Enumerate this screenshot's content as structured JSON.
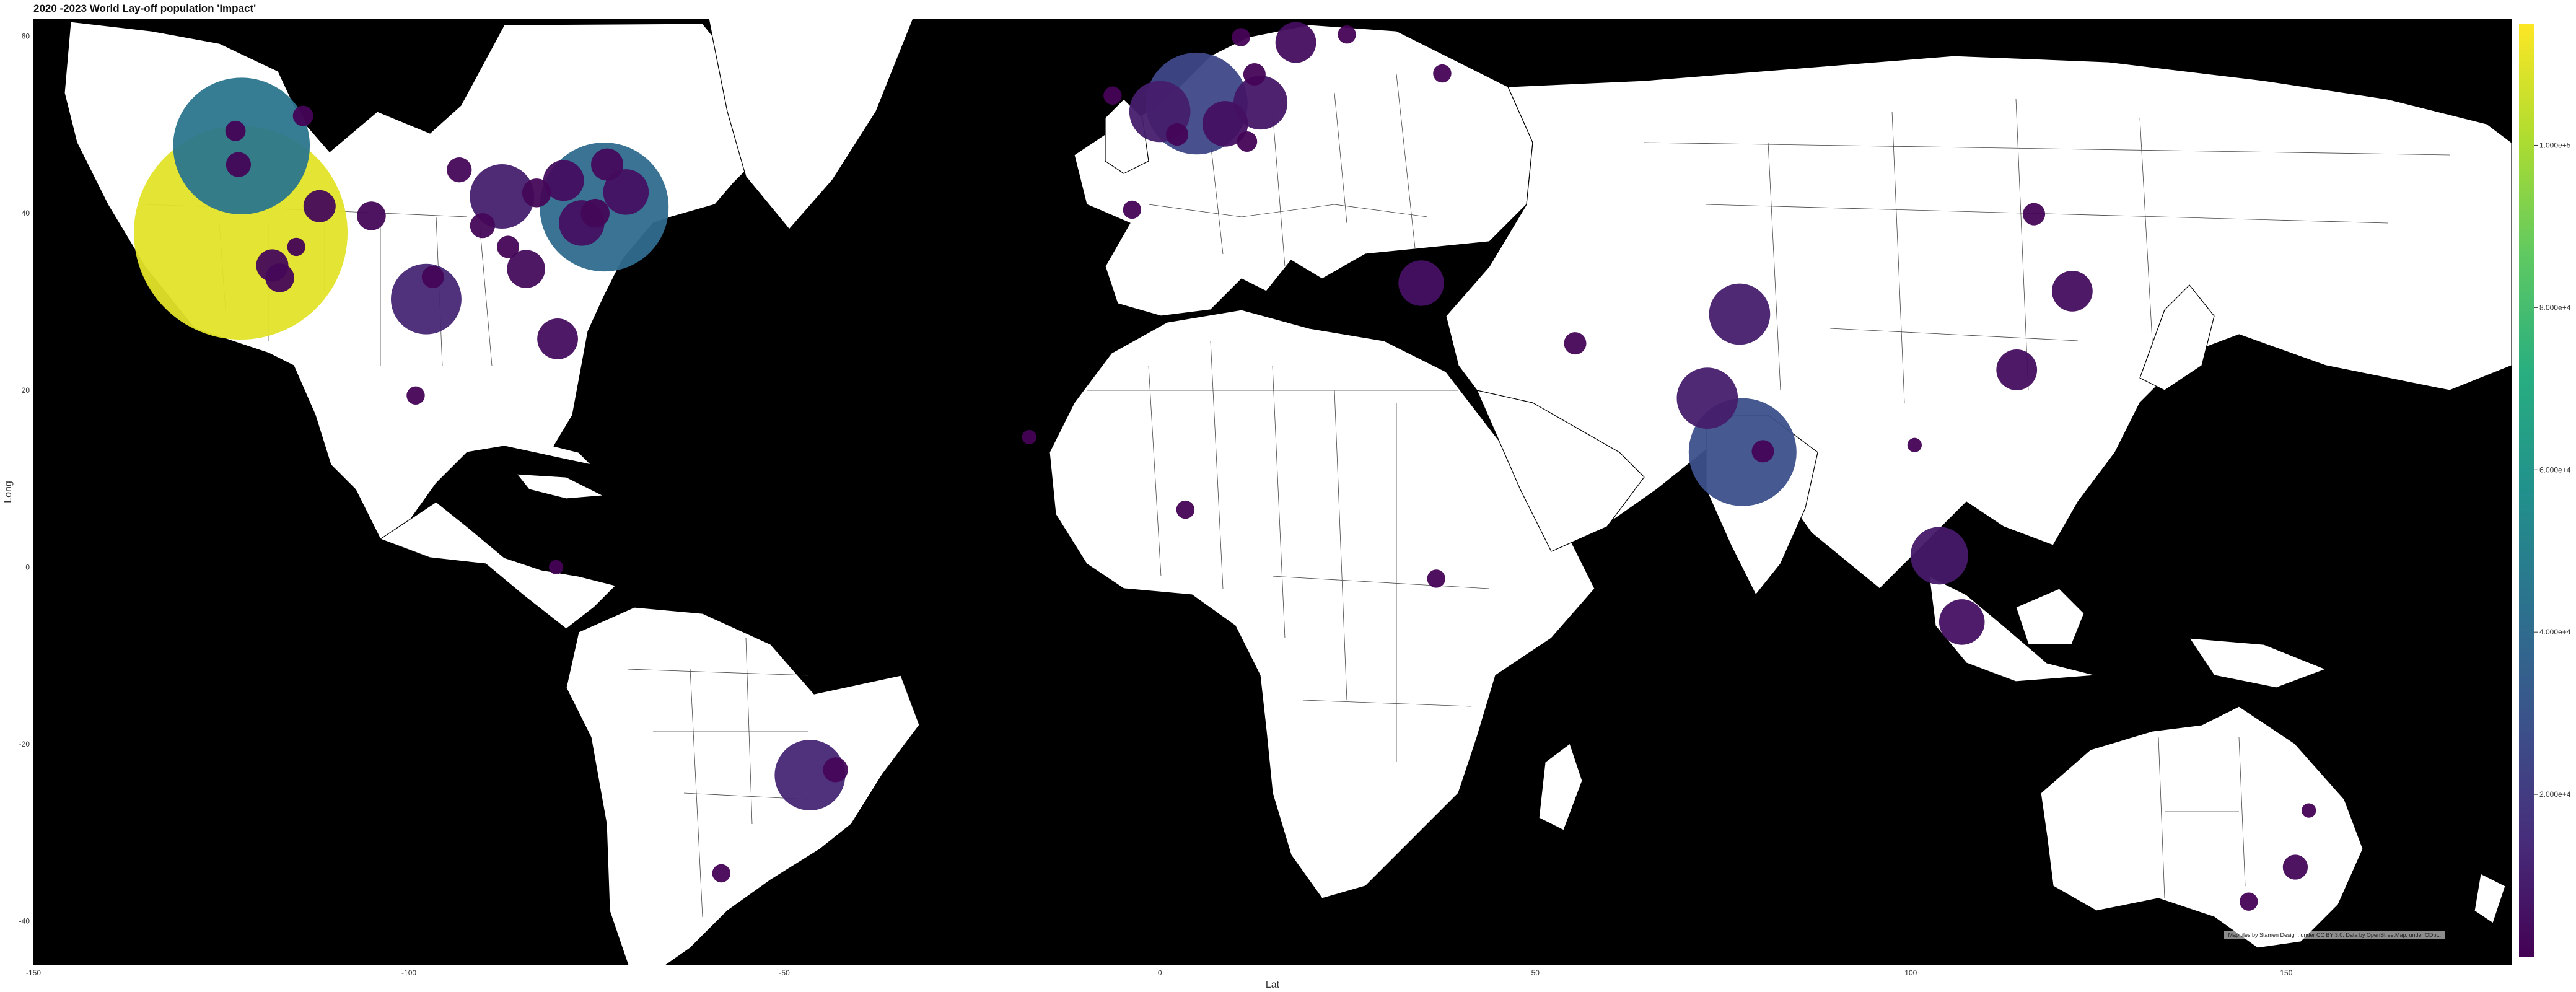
{
  "title": "2020 -2023 World Lay-off population 'Impact'",
  "attribution": "Map tiles by Stamen Design, under CC BY 3.0. Data by OpenStreetMap, under ODbL.",
  "chart_data": {
    "type": "scatter",
    "title": "2020 -2023 World Lay-off population 'Impact'",
    "xlabel": "Lat",
    "ylabel": "Long",
    "xlim": [
      -150,
      180
    ],
    "ylim": [
      -45,
      62
    ],
    "x_ticks": [
      -150,
      -100,
      -50,
      0,
      50,
      100,
      150
    ],
    "y_ticks": [
      60,
      40,
      20,
      0,
      -20,
      -40
    ],
    "x_tick_labels": [
      "-150",
      "-100",
      "-50",
      "0",
      "50",
      "100",
      "150"
    ],
    "y_tick_labels": [
      "60",
      "40",
      "20",
      "0",
      "-20",
      "-40"
    ],
    "colorbar": {
      "colormap": "viridis",
      "min": 0,
      "max": 115000,
      "ticks": [
        20000,
        40000,
        60000,
        80000,
        100000
      ],
      "tick_labels": [
        "2.000e+4",
        "4.000e+4",
        "6.000e+4",
        "8.000e+4",
        "1.000e+5"
      ]
    },
    "points": [
      {
        "x": -122.4,
        "y": 37.8,
        "value": 110000
      },
      {
        "x": -122.3,
        "y": 47.6,
        "value": 45000
      },
      {
        "x": -74.0,
        "y": 40.7,
        "value": 40000
      },
      {
        "x": 4.9,
        "y": 52.4,
        "value": 25000
      },
      {
        "x": 77.6,
        "y": 13.0,
        "value": 28000
      },
      {
        "x": -97.7,
        "y": 30.3,
        "value": 12000
      },
      {
        "x": -87.6,
        "y": 41.9,
        "value": 10000
      },
      {
        "x": 77.2,
        "y": 28.6,
        "value": 9000
      },
      {
        "x": 72.9,
        "y": 19.1,
        "value": 9000
      },
      {
        "x": -46.6,
        "y": -23.5,
        "value": 12000
      },
      {
        "x": 0.0,
        "y": 51.5,
        "value": 9000
      },
      {
        "x": 103.8,
        "y": 1.3,
        "value": 8000
      },
      {
        "x": 13.4,
        "y": 52.5,
        "value": 7000
      },
      {
        "x": 8.7,
        "y": 50.1,
        "value": 5000
      },
      {
        "x": 106.8,
        "y": -6.2,
        "value": 5000
      },
      {
        "x": 121.5,
        "y": 31.2,
        "value": 4000
      },
      {
        "x": 114.1,
        "y": 22.3,
        "value": 4000
      },
      {
        "x": 34.8,
        "y": 32.1,
        "value": 5000
      },
      {
        "x": 18.1,
        "y": 59.3,
        "value": 4000
      },
      {
        "x": -80.2,
        "y": 25.8,
        "value": 4000
      },
      {
        "x": -71.1,
        "y": 42.4,
        "value": 5000
      },
      {
        "x": -77.0,
        "y": 38.9,
        "value": 5000
      },
      {
        "x": -79.4,
        "y": 43.7,
        "value": 4000
      },
      {
        "x": -84.4,
        "y": 33.7,
        "value": 3500
      },
      {
        "x": -105.0,
        "y": 39.7,
        "value": 2000
      },
      {
        "x": -111.9,
        "y": 40.8,
        "value": 2500
      },
      {
        "x": -118.2,
        "y": 34.1,
        "value": 2500
      },
      {
        "x": -117.2,
        "y": 32.7,
        "value": 2000
      },
      {
        "x": -73.6,
        "y": 45.5,
        "value": 2500
      },
      {
        "x": -75.2,
        "y": 40.0,
        "value": 2000
      },
      {
        "x": -83.0,
        "y": 42.3,
        "value": 2000
      },
      {
        "x": -90.2,
        "y": 38.6,
        "value": 1500
      },
      {
        "x": -93.3,
        "y": 44.9,
        "value": 1500
      },
      {
        "x": -122.7,
        "y": 45.5,
        "value": 1500
      },
      {
        "x": -114.1,
        "y": 51.0,
        "value": 1000
      },
      {
        "x": -123.1,
        "y": 49.3,
        "value": 1000
      },
      {
        "x": -86.8,
        "y": 36.2,
        "value": 1200
      },
      {
        "x": -96.8,
        "y": 32.8,
        "value": 1200
      },
      {
        "x": -99.1,
        "y": 19.4,
        "value": 800
      },
      {
        "x": -115.0,
        "y": 36.2,
        "value": 800
      },
      {
        "x": -58.4,
        "y": -34.6,
        "value": 800
      },
      {
        "x": -43.2,
        "y": -22.9,
        "value": 1500
      },
      {
        "x": 2.3,
        "y": 48.9,
        "value": 1200
      },
      {
        "x": -6.3,
        "y": 53.3,
        "value": 800
      },
      {
        "x": -3.7,
        "y": 40.4,
        "value": 800
      },
      {
        "x": 12.6,
        "y": 55.7,
        "value": 1200
      },
      {
        "x": 11.6,
        "y": 48.1,
        "value": 1000
      },
      {
        "x": 37.6,
        "y": 55.8,
        "value": 800
      },
      {
        "x": 24.9,
        "y": 60.2,
        "value": 800
      },
      {
        "x": 10.8,
        "y": 59.9,
        "value": 800
      },
      {
        "x": 55.3,
        "y": 25.3,
        "value": 1200
      },
      {
        "x": 36.8,
        "y": -1.3,
        "value": 800
      },
      {
        "x": 3.4,
        "y": 6.5,
        "value": 800
      },
      {
        "x": -17.4,
        "y": 14.7,
        "value": 500
      },
      {
        "x": 80.3,
        "y": 13.1,
        "value": 1200
      },
      {
        "x": 116.4,
        "y": 39.9,
        "value": 1200
      },
      {
        "x": 100.5,
        "y": 13.8,
        "value": 500
      },
      {
        "x": 151.2,
        "y": -33.9,
        "value": 1500
      },
      {
        "x": 145.0,
        "y": -37.8,
        "value": 800
      },
      {
        "x": 153.0,
        "y": -27.5,
        "value": 500
      },
      {
        "x": -80.4,
        "y": 0.0,
        "value": 500
      }
    ]
  }
}
